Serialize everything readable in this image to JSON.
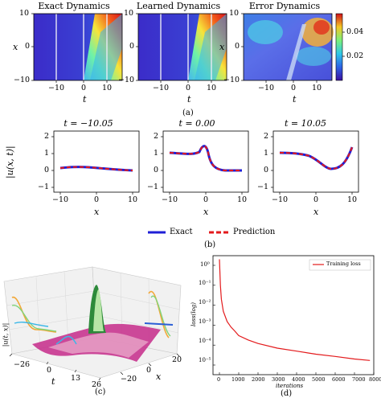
{
  "figure": {
    "row1": {
      "panels": [
        {
          "title": "Exact Dynamics"
        },
        {
          "title": "Learned Dynamics"
        },
        {
          "title": "Error Dynamics"
        }
      ],
      "ylabel": "x",
      "xlabel": "t",
      "yticks": [
        "10",
        "0",
        "−10"
      ],
      "xticks": [
        "−10",
        "0",
        "10"
      ],
      "colorbar_ticks": [
        "0.04",
        "0.02"
      ]
    },
    "caption_a": "(a)",
    "row2": {
      "titles": [
        "t = −10.05",
        "t = 0.00",
        "t = 10.05"
      ],
      "ylabel": "|u(x, t)|",
      "xlabel": "x",
      "yticks": [
        "2",
        "1",
        "0",
        "−1"
      ],
      "xticks": [
        "−10",
        "0",
        "10"
      ]
    },
    "legend": {
      "exact": "Exact",
      "prediction": "Prediction"
    },
    "caption_b": "(b)",
    "panel_c": {
      "zlabel": "|u(t, x)|",
      "tlabel": "t",
      "xlabel": "x",
      "tticks": [
        "−26",
        "0",
        "13",
        "26"
      ],
      "xticks": [
        "−20",
        "0",
        "20"
      ],
      "caption": "(c)"
    },
    "panel_d": {
      "ylabel": "loss(log)",
      "xlabel": "iterations",
      "legend": "Training loss",
      "yticks": [
        "10⁰",
        "10⁻¹",
        "10⁻²",
        "10⁻³",
        "10⁻⁴",
        "10⁻⁵"
      ],
      "xticks": [
        "0",
        "1000",
        "2000",
        "3000",
        "4000",
        "5000",
        "6000",
        "7000",
        "8000"
      ],
      "caption": "(d)"
    }
  },
  "colors": {
    "exact": "#1f1fd6",
    "prediction": "#e31a1c",
    "loss": "#e31a1c"
  },
  "chart_data": {
    "type": "line",
    "title": "",
    "xlabel": "iterations",
    "ylabel": "loss(log)",
    "yscale": "log",
    "xlim": [
      0,
      8000
    ],
    "ylim": [
      1e-05,
      1
    ],
    "series": [
      {
        "name": "Training loss",
        "x": [
          0,
          50,
          100,
          200,
          400,
          600,
          800,
          1000,
          1500,
          2000,
          3000,
          4000,
          5000,
          6000,
          7000,
          7800
        ],
        "y": [
          2,
          0.1,
          0.02,
          0.005,
          0.0015,
          0.0008,
          0.0005,
          0.0003,
          0.00018,
          0.00012,
          7e-05,
          5e-05,
          3.5e-05,
          2.7e-05,
          2e-05,
          1.7e-05
        ]
      }
    ]
  }
}
